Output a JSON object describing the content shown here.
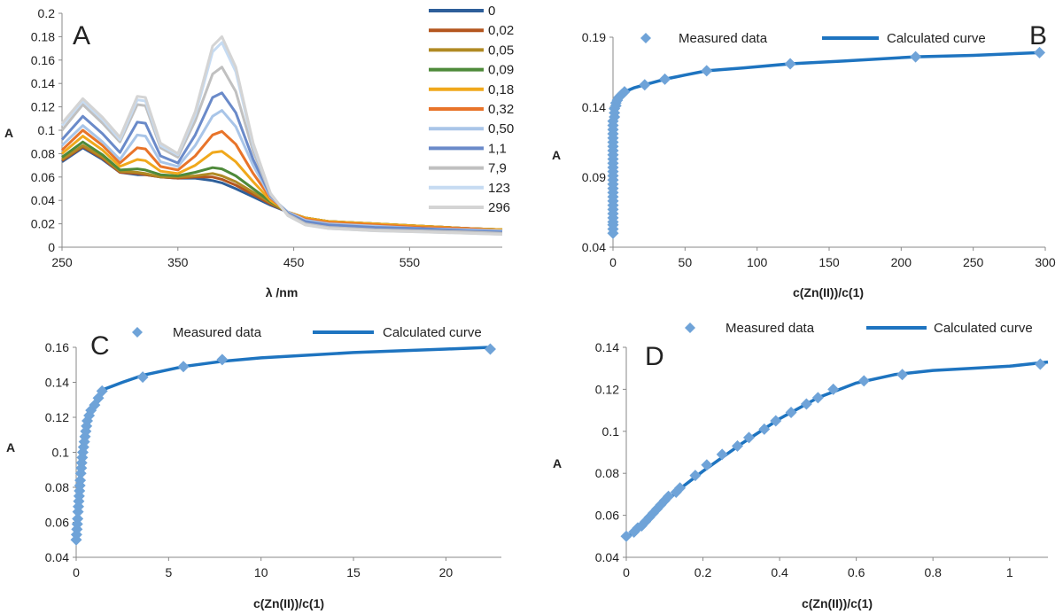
{
  "chart_data": [
    {
      "id": "A",
      "type": "line",
      "panel_label": "A",
      "xlabel": "λ /nm",
      "ylabel": "A",
      "xlim": [
        250,
        630
      ],
      "ylim": [
        0,
        0.2
      ],
      "x_ticks": [
        250,
        350,
        450,
        550
      ],
      "y_ticks": [
        0,
        0.02,
        0.04,
        0.06,
        0.08,
        0.1,
        0.12,
        0.14,
        0.16,
        0.18,
        0.2
      ],
      "y_tick_labels": [
        "0",
        "0.02",
        "0.04",
        "0.06",
        "0.08",
        "0.1",
        "0.12",
        "0.14",
        "0.16",
        "0.18",
        "0.2"
      ],
      "legend_position": "right",
      "x": [
        250,
        268,
        285,
        300,
        315,
        322,
        335,
        350,
        365,
        380,
        388,
        400,
        415,
        430,
        445,
        460,
        480,
        520,
        560,
        600,
        630
      ],
      "series": [
        {
          "name": "0",
          "color": "#2e5f9a",
          "values": [
            0.073,
            0.085,
            0.075,
            0.064,
            0.062,
            0.062,
            0.06,
            0.059,
            0.059,
            0.057,
            0.055,
            0.05,
            0.043,
            0.036,
            0.03,
            0.025,
            0.022,
            0.02,
            0.018,
            0.016,
            0.015
          ]
        },
        {
          "name": "0,02",
          "color": "#b4561f",
          "values": [
            0.074,
            0.086,
            0.076,
            0.064,
            0.063,
            0.062,
            0.06,
            0.059,
            0.06,
            0.06,
            0.058,
            0.053,
            0.045,
            0.037,
            0.03,
            0.025,
            0.022,
            0.02,
            0.018,
            0.016,
            0.015
          ]
        },
        {
          "name": "0,05",
          "color": "#b08a24",
          "values": [
            0.075,
            0.087,
            0.077,
            0.065,
            0.064,
            0.063,
            0.06,
            0.06,
            0.061,
            0.063,
            0.061,
            0.056,
            0.047,
            0.038,
            0.03,
            0.025,
            0.022,
            0.02,
            0.018,
            0.016,
            0.015
          ]
        },
        {
          "name": "0,09",
          "color": "#4e8a3a",
          "values": [
            0.077,
            0.09,
            0.079,
            0.066,
            0.067,
            0.066,
            0.062,
            0.061,
            0.064,
            0.068,
            0.067,
            0.061,
            0.05,
            0.039,
            0.03,
            0.025,
            0.022,
            0.02,
            0.018,
            0.016,
            0.015
          ]
        },
        {
          "name": "0,18",
          "color": "#f0a81c",
          "values": [
            0.08,
            0.095,
            0.083,
            0.069,
            0.075,
            0.074,
            0.065,
            0.063,
            0.07,
            0.081,
            0.082,
            0.073,
            0.056,
            0.04,
            0.03,
            0.025,
            0.022,
            0.02,
            0.018,
            0.016,
            0.015
          ]
        },
        {
          "name": "0,32",
          "color": "#e8742a",
          "values": [
            0.083,
            0.1,
            0.087,
            0.072,
            0.085,
            0.084,
            0.069,
            0.066,
            0.078,
            0.096,
            0.099,
            0.088,
            0.063,
            0.042,
            0.03,
            0.024,
            0.021,
            0.019,
            0.017,
            0.016,
            0.014
          ]
        },
        {
          "name": "0,50",
          "color": "#a9c5e8",
          "values": [
            0.087,
            0.104,
            0.09,
            0.075,
            0.096,
            0.095,
            0.073,
            0.069,
            0.087,
            0.112,
            0.117,
            0.103,
            0.07,
            0.043,
            0.03,
            0.023,
            0.02,
            0.018,
            0.016,
            0.015,
            0.014
          ]
        },
        {
          "name": "1,1",
          "color": "#6a8ac9",
          "values": [
            0.092,
            0.112,
            0.097,
            0.081,
            0.107,
            0.106,
            0.078,
            0.072,
            0.096,
            0.128,
            0.132,
            0.115,
            0.075,
            0.044,
            0.029,
            0.022,
            0.019,
            0.017,
            0.016,
            0.014,
            0.013
          ]
        },
        {
          "name": "7,9",
          "color": "#c0c0c0",
          "values": [
            0.1,
            0.122,
            0.106,
            0.09,
            0.122,
            0.121,
            0.085,
            0.077,
            0.108,
            0.148,
            0.154,
            0.133,
            0.082,
            0.045,
            0.028,
            0.02,
            0.017,
            0.015,
            0.014,
            0.013,
            0.012
          ]
        },
        {
          "name": "123",
          "color": "#c6dbf2",
          "values": [
            0.104,
            0.125,
            0.109,
            0.092,
            0.126,
            0.125,
            0.087,
            0.079,
            0.113,
            0.167,
            0.175,
            0.15,
            0.087,
            0.046,
            0.027,
            0.019,
            0.016,
            0.014,
            0.013,
            0.012,
            0.011
          ]
        },
        {
          "name": "296",
          "color": "#d4d4d4",
          "values": [
            0.106,
            0.127,
            0.111,
            0.094,
            0.129,
            0.128,
            0.089,
            0.08,
            0.116,
            0.172,
            0.18,
            0.154,
            0.089,
            0.046,
            0.027,
            0.019,
            0.016,
            0.014,
            0.013,
            0.012,
            0.011
          ]
        }
      ]
    },
    {
      "id": "B",
      "type": "scatter",
      "panel_label": "B",
      "xlabel": "c(Zn(II))/c(1)",
      "ylabel": "A",
      "xlim": [
        0,
        300
      ],
      "ylim": [
        0.04,
        0.19
      ],
      "x_ticks": [
        0,
        50,
        100,
        150,
        200,
        250,
        300
      ],
      "y_ticks": [
        0.04,
        0.09,
        0.14,
        0.19
      ],
      "y_tick_labels": [
        "0.04",
        "0.09",
        "0.14",
        "0.19"
      ],
      "legend_position": "top",
      "series": [
        {
          "name": "Measured data",
          "marker": "diamond",
          "color": "#6fa3d8",
          "x": [
            0,
            0,
            0,
            0,
            0,
            0,
            0,
            0,
            0,
            0,
            0,
            0,
            0,
            0,
            0,
            0,
            0,
            0,
            0,
            0,
            0,
            0,
            0,
            0,
            0,
            0,
            0,
            0,
            1,
            1,
            1,
            2,
            2,
            3,
            4,
            6,
            8,
            22,
            36,
            65,
            123,
            210,
            296
          ],
          "y": [
            0.05,
            0.053,
            0.056,
            0.058,
            0.061,
            0.064,
            0.067,
            0.07,
            0.073,
            0.076,
            0.079,
            0.082,
            0.085,
            0.088,
            0.091,
            0.094,
            0.097,
            0.1,
            0.103,
            0.106,
            0.109,
            0.112,
            0.115,
            0.118,
            0.121,
            0.124,
            0.127,
            0.13,
            0.133,
            0.136,
            0.139,
            0.141,
            0.143,
            0.145,
            0.147,
            0.149,
            0.151,
            0.156,
            0.16,
            0.166,
            0.171,
            0.176,
            0.179
          ]
        },
        {
          "name": "Calculated curve",
          "color": "#1e74c0",
          "x": [
            0,
            1,
            2,
            4,
            8,
            15,
            22,
            36,
            50,
            65,
            90,
            123,
            160,
            210,
            250,
            296
          ],
          "y": [
            0.05,
            0.136,
            0.143,
            0.148,
            0.151,
            0.154,
            0.156,
            0.16,
            0.163,
            0.166,
            0.168,
            0.171,
            0.173,
            0.176,
            0.177,
            0.179
          ]
        }
      ]
    },
    {
      "id": "C",
      "type": "scatter",
      "panel_label": "C",
      "xlabel": "c(Zn(II))/c(1)",
      "ylabel": "A",
      "xlim": [
        0,
        23
      ],
      "ylim": [
        0.04,
        0.16
      ],
      "x_ticks": [
        0,
        5,
        10,
        15,
        20
      ],
      "y_ticks": [
        0.04,
        0.06,
        0.08,
        0.1,
        0.12,
        0.14,
        0.16
      ],
      "y_tick_labels": [
        "0.04",
        "0.06",
        "0.08",
        "0.1",
        "0.12",
        "0.14",
        "0.16"
      ],
      "legend_position": "top",
      "series": [
        {
          "name": "Measured data",
          "marker": "diamond",
          "color": "#6fa3d8",
          "x": [
            0.0,
            0.02,
            0.04,
            0.06,
            0.08,
            0.1,
            0.12,
            0.14,
            0.16,
            0.18,
            0.2,
            0.22,
            0.25,
            0.28,
            0.3,
            0.33,
            0.36,
            0.4,
            0.44,
            0.48,
            0.52,
            0.56,
            0.6,
            0.7,
            0.8,
            1.0,
            1.2,
            1.4,
            3.6,
            5.8,
            7.9,
            22.4
          ],
          "y": [
            0.05,
            0.053,
            0.056,
            0.059,
            0.062,
            0.066,
            0.069,
            0.072,
            0.075,
            0.078,
            0.081,
            0.084,
            0.088,
            0.091,
            0.094,
            0.097,
            0.1,
            0.103,
            0.106,
            0.109,
            0.112,
            0.115,
            0.118,
            0.121,
            0.124,
            0.127,
            0.131,
            0.135,
            0.143,
            0.149,
            0.153,
            0.159
          ]
        },
        {
          "name": "Calculated curve",
          "color": "#1e74c0",
          "x": [
            0,
            0.3,
            0.6,
            1.0,
            1.5,
            2.5,
            3.6,
            5.8,
            7.9,
            10,
            15,
            20,
            22.4
          ],
          "y": [
            0.05,
            0.094,
            0.118,
            0.128,
            0.136,
            0.14,
            0.144,
            0.149,
            0.152,
            0.154,
            0.157,
            0.159,
            0.16
          ]
        }
      ]
    },
    {
      "id": "D",
      "type": "scatter",
      "panel_label": "D",
      "xlabel": "c(Zn(II))/c(1)",
      "ylabel": "A",
      "xlim": [
        0,
        1.1
      ],
      "ylim": [
        0.04,
        0.14
      ],
      "x_ticks": [
        0,
        0.2,
        0.4,
        0.6,
        0.8,
        1
      ],
      "x_tick_labels": [
        "0",
        "0.2",
        "0.4",
        "0.6",
        "0.8",
        "1"
      ],
      "y_ticks": [
        0.04,
        0.06,
        0.08,
        0.1,
        0.12,
        0.14
      ],
      "y_tick_labels": [
        "0.04",
        "0.06",
        "0.08",
        "0.1",
        "0.12",
        "0.14"
      ],
      "legend_position": "top",
      "series": [
        {
          "name": "Measured data",
          "marker": "diamond",
          "color": "#6fa3d8",
          "x": [
            0.0,
            0.02,
            0.03,
            0.04,
            0.05,
            0.06,
            0.07,
            0.08,
            0.09,
            0.1,
            0.11,
            0.13,
            0.14,
            0.18,
            0.21,
            0.25,
            0.29,
            0.32,
            0.36,
            0.39,
            0.43,
            0.47,
            0.5,
            0.54,
            0.62,
            0.72,
            1.08
          ],
          "y": [
            0.05,
            0.052,
            0.054,
            0.055,
            0.057,
            0.059,
            0.061,
            0.063,
            0.065,
            0.067,
            0.069,
            0.071,
            0.073,
            0.079,
            0.084,
            0.089,
            0.093,
            0.097,
            0.101,
            0.105,
            0.109,
            0.113,
            0.116,
            0.12,
            0.124,
            0.127,
            0.132
          ]
        },
        {
          "name": "Calculated curve",
          "color": "#1e74c0",
          "x": [
            0.0,
            0.05,
            0.1,
            0.15,
            0.2,
            0.3,
            0.4,
            0.5,
            0.6,
            0.7,
            0.8,
            0.9,
            1.0,
            1.1
          ],
          "y": [
            0.049,
            0.057,
            0.066,
            0.074,
            0.081,
            0.094,
            0.106,
            0.116,
            0.123,
            0.127,
            0.129,
            0.13,
            0.131,
            0.133
          ]
        }
      ]
    }
  ]
}
